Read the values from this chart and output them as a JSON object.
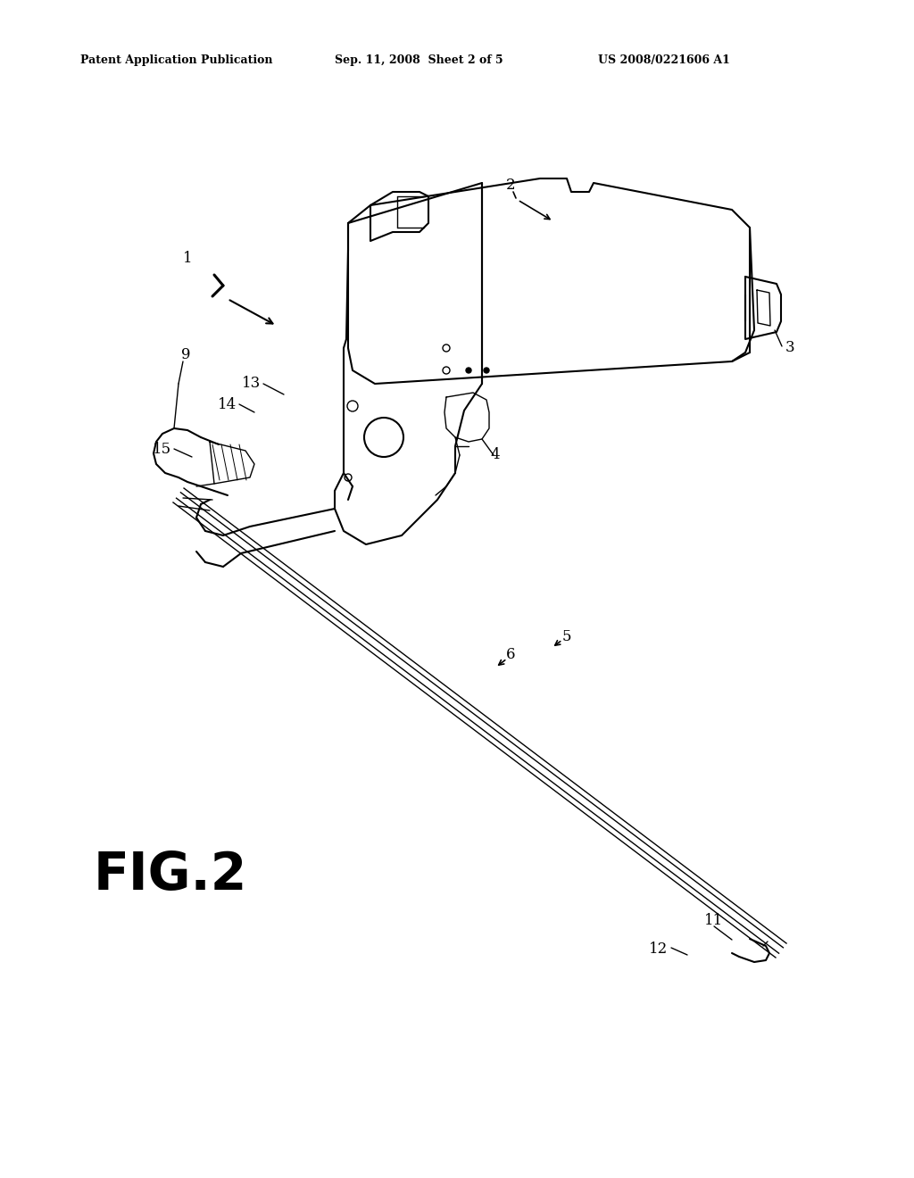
{
  "background_color": "#ffffff",
  "header_left": "Patent Application Publication",
  "header_center": "Sep. 11, 2008  Sheet 2 of 5",
  "header_right": "US 2008/0221606 A1",
  "fig_label": "FIG.2"
}
